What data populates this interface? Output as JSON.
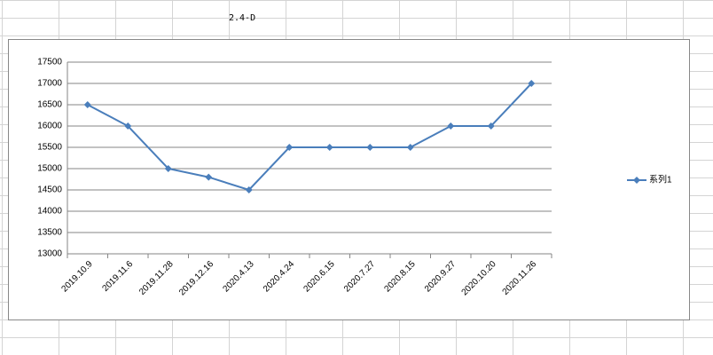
{
  "sheet": {
    "cell_text": "2.4-D"
  },
  "chart_data": {
    "type": "line",
    "categories": [
      "2019.10.9",
      "2019.11.6",
      "2019.11.28",
      "2019.12.16",
      "2020.4.13",
      "2020.4.24",
      "2020.6.15",
      "2020.7.27",
      "2020.8.15",
      "2020.9.27",
      "2020.10.20",
      "2020.11.26"
    ],
    "series": [
      {
        "name": "系列1",
        "color": "#4a7ebb",
        "values": [
          16500,
          16000,
          15000,
          14800,
          14500,
          15500,
          15500,
          15500,
          15500,
          16000,
          16000,
          17000
        ]
      }
    ],
    "ylim": [
      13000,
      17500
    ],
    "yticks": [
      13000,
      13500,
      14000,
      14500,
      15000,
      15500,
      16000,
      16500,
      17000,
      17500
    ],
    "grid": true,
    "legend": "right"
  }
}
